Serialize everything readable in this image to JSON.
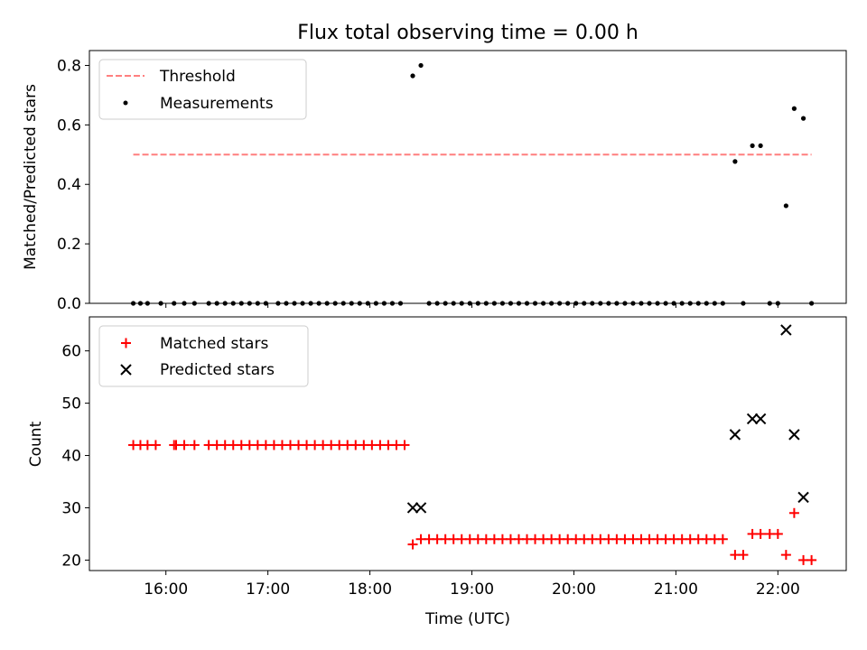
{
  "chart_data": {
    "type": "scatter",
    "title": "Flux total observing time = 0.00 h",
    "x_axis": {
      "label": "Time (UTC)",
      "unit": "hours of day (UTC)",
      "range": [
        15.25,
        22.67
      ],
      "ticks": [
        16,
        17,
        18,
        19,
        20,
        21,
        22
      ],
      "tick_labels": [
        "16:00",
        "17:00",
        "18:00",
        "19:00",
        "20:00",
        "21:00",
        "22:00"
      ]
    },
    "top_panel": {
      "ylabel": "Matched/Predicted stars",
      "ylim": [
        0,
        0.85
      ],
      "yticks": [
        0.0,
        0.2,
        0.4,
        0.6,
        0.8
      ],
      "ytick_labels": [
        "0.0",
        "0.2",
        "0.4",
        "0.6",
        "0.8"
      ],
      "legend_position": "top-left",
      "threshold": {
        "name": "Threshold",
        "value": 0.5,
        "x_start": 15.68,
        "x_end": 22.33,
        "color": "#ff7f7f"
      },
      "measurements": {
        "name": "Measurements",
        "color": "#000000",
        "x": [
          15.68,
          15.75,
          15.82,
          15.95,
          16.08,
          16.18,
          16.28,
          16.42,
          16.5,
          16.58,
          16.66,
          16.74,
          16.82,
          16.9,
          16.98,
          17.1,
          17.18,
          17.26,
          17.34,
          17.42,
          17.5,
          17.58,
          17.66,
          17.74,
          17.82,
          17.9,
          17.98,
          18.06,
          18.14,
          18.22,
          18.3,
          18.42,
          18.5,
          18.58,
          18.66,
          18.74,
          18.82,
          18.9,
          18.98,
          19.06,
          19.14,
          19.22,
          19.3,
          19.38,
          19.46,
          19.54,
          19.62,
          19.7,
          19.78,
          19.86,
          19.94,
          20.02,
          20.1,
          20.18,
          20.26,
          20.34,
          20.42,
          20.5,
          20.58,
          20.66,
          20.74,
          20.82,
          20.9,
          20.98,
          21.06,
          21.14,
          21.22,
          21.3,
          21.38,
          21.46,
          21.58,
          21.66,
          21.75,
          21.83,
          21.92,
          22.0,
          22.08,
          22.16,
          22.25,
          22.33
        ],
        "y": [
          0,
          0,
          0,
          0,
          0,
          0,
          0,
          0,
          0,
          0,
          0,
          0,
          0,
          0,
          0,
          0,
          0,
          0,
          0,
          0,
          0,
          0,
          0,
          0,
          0,
          0,
          0,
          0,
          0,
          0,
          0,
          0.765,
          0.8,
          0,
          0,
          0,
          0,
          0,
          0,
          0,
          0,
          0,
          0,
          0,
          0,
          0,
          0,
          0,
          0,
          0,
          0,
          0,
          0,
          0,
          0,
          0,
          0,
          0,
          0,
          0,
          0,
          0,
          0,
          0,
          0,
          0,
          0,
          0,
          0,
          0,
          0.477,
          0,
          0.53,
          0.53,
          0,
          0,
          0.328,
          0.655,
          0.622,
          0
        ]
      }
    },
    "bottom_panel": {
      "ylabel": "Count",
      "ylim": [
        18,
        66.5
      ],
      "yticks": [
        20,
        30,
        40,
        50,
        60
      ],
      "ytick_labels": [
        "20",
        "30",
        "40",
        "50",
        "60"
      ],
      "legend_position": "top-left",
      "matched": {
        "name": "Matched stars",
        "color": "#ff0000",
        "x": [
          15.68,
          15.75,
          15.82,
          15.9,
          16.08,
          16.1,
          16.18,
          16.28,
          16.42,
          16.5,
          16.58,
          16.66,
          16.74,
          16.82,
          16.9,
          16.98,
          17.06,
          17.14,
          17.22,
          17.3,
          17.38,
          17.46,
          17.54,
          17.62,
          17.7,
          17.78,
          17.86,
          17.94,
          18.02,
          18.1,
          18.18,
          18.26,
          18.34,
          18.42,
          18.5,
          18.58,
          18.66,
          18.74,
          18.82,
          18.9,
          18.98,
          19.06,
          19.14,
          19.22,
          19.3,
          19.38,
          19.46,
          19.54,
          19.62,
          19.7,
          19.78,
          19.86,
          19.94,
          20.02,
          20.1,
          20.18,
          20.26,
          20.34,
          20.42,
          20.5,
          20.58,
          20.66,
          20.74,
          20.82,
          20.9,
          20.98,
          21.06,
          21.14,
          21.22,
          21.3,
          21.38,
          21.46,
          21.58,
          21.66,
          21.75,
          21.83,
          21.92,
          22.0,
          22.08,
          22.16,
          22.25,
          22.33
        ],
        "y": [
          42,
          42,
          42,
          42,
          42,
          42,
          42,
          42,
          42,
          42,
          42,
          42,
          42,
          42,
          42,
          42,
          42,
          42,
          42,
          42,
          42,
          42,
          42,
          42,
          42,
          42,
          42,
          42,
          42,
          42,
          42,
          42,
          42,
          23,
          24,
          24,
          24,
          24,
          24,
          24,
          24,
          24,
          24,
          24,
          24,
          24,
          24,
          24,
          24,
          24,
          24,
          24,
          24,
          24,
          24,
          24,
          24,
          24,
          24,
          24,
          24,
          24,
          24,
          24,
          24,
          24,
          24,
          24,
          24,
          24,
          24,
          24,
          21,
          21,
          25,
          25,
          25,
          25,
          21,
          29,
          20,
          20
        ]
      },
      "predicted": {
        "name": "Predicted stars",
        "color": "#000000",
        "x": [
          18.42,
          18.5,
          21.58,
          21.75,
          21.83,
          22.08,
          22.16,
          22.25
        ],
        "y": [
          30,
          30,
          44,
          47,
          47,
          64,
          44,
          32
        ]
      }
    }
  }
}
